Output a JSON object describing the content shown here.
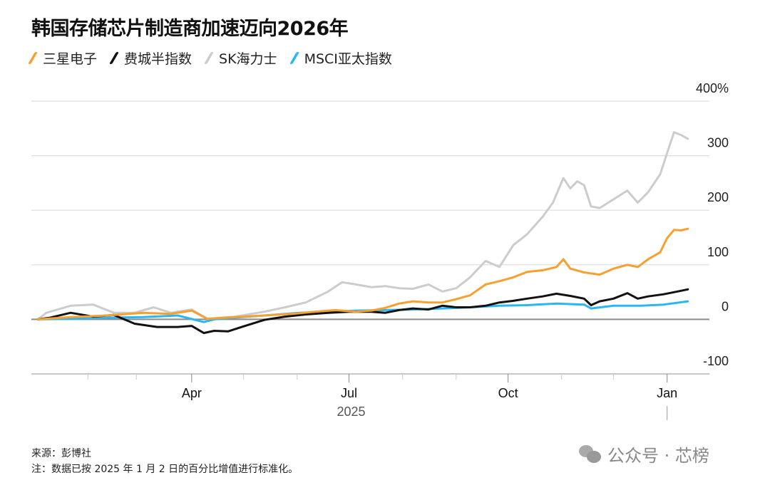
{
  "chart_data": {
    "type": "line",
    "title": "韩国存储芯片制造商加速迈向2026年",
    "xlabel": "2025",
    "ylabel": "",
    "x_units": "days since 2025-01-02",
    "xlim": [
      -2,
      382
    ],
    "ylim": [
      -100,
      400
    ],
    "yticks": [
      {
        "value": 400,
        "label": "400%"
      },
      {
        "value": 300,
        "label": "300"
      },
      {
        "value": 200,
        "label": "200"
      },
      {
        "value": 100,
        "label": "100"
      },
      {
        "value": 0,
        "label": "0"
      },
      {
        "value": -100,
        "label": "-100"
      }
    ],
    "xticks_minor": [
      29,
      57,
      119,
      150,
      211,
      242,
      303,
      333
    ],
    "xticks": [
      {
        "value": 89,
        "label": "Apr"
      },
      {
        "value": 180,
        "label": "Jul"
      },
      {
        "value": 272,
        "label": "Oct"
      },
      {
        "value": 364,
        "label": "Jan"
      }
    ],
    "year_label": "2025",
    "grid": true,
    "legend_position": "top-left",
    "series": [
      {
        "name": "SK海力士",
        "color": "#cccccc",
        "points": [
          [
            0,
            0
          ],
          [
            5,
            12
          ],
          [
            19,
            25
          ],
          [
            32,
            27
          ],
          [
            44,
            12
          ],
          [
            56,
            12
          ],
          [
            67,
            22
          ],
          [
            77,
            12
          ],
          [
            89,
            18
          ],
          [
            98,
            1
          ],
          [
            114,
            5
          ],
          [
            131,
            14
          ],
          [
            143,
            22
          ],
          [
            155,
            31
          ],
          [
            168,
            51
          ],
          [
            176,
            68
          ],
          [
            184,
            64
          ],
          [
            193,
            59
          ],
          [
            201,
            61
          ],
          [
            209,
            57
          ],
          [
            217,
            56
          ],
          [
            226,
            64
          ],
          [
            234,
            51
          ],
          [
            242,
            57
          ],
          [
            250,
            77
          ],
          [
            259,
            107
          ],
          [
            267,
            96
          ],
          [
            275,
            136
          ],
          [
            283,
            156
          ],
          [
            292,
            188
          ],
          [
            298,
            214
          ],
          [
            304,
            259
          ],
          [
            308,
            240
          ],
          [
            312,
            253
          ],
          [
            316,
            246
          ],
          [
            320,
            207
          ],
          [
            325,
            204
          ],
          [
            333,
            220
          ],
          [
            341,
            236
          ],
          [
            347,
            214
          ],
          [
            353,
            233
          ],
          [
            360,
            266
          ],
          [
            364,
            305
          ],
          [
            368,
            343
          ],
          [
            372,
            338
          ],
          [
            376,
            331
          ]
        ]
      },
      {
        "name": "MSCI亚太指数",
        "color": "#29b6f6",
        "points": [
          [
            0,
            0
          ],
          [
            19,
            1
          ],
          [
            40,
            3
          ],
          [
            61,
            4
          ],
          [
            81,
            7
          ],
          [
            96,
            -5
          ],
          [
            102,
            0
          ],
          [
            118,
            4
          ],
          [
            135,
            8
          ],
          [
            151,
            12
          ],
          [
            168,
            14
          ],
          [
            184,
            16
          ],
          [
            201,
            17
          ],
          [
            217,
            18
          ],
          [
            234,
            20
          ],
          [
            250,
            22
          ],
          [
            267,
            25
          ],
          [
            283,
            26
          ],
          [
            300,
            29
          ],
          [
            316,
            27
          ],
          [
            320,
            20
          ],
          [
            333,
            25
          ],
          [
            349,
            25
          ],
          [
            362,
            27
          ],
          [
            376,
            33
          ]
        ]
      },
      {
        "name": "费城半指数",
        "color": "#111111",
        "points": [
          [
            0,
            0
          ],
          [
            7,
            3
          ],
          [
            19,
            12
          ],
          [
            32,
            5
          ],
          [
            44,
            8
          ],
          [
            56,
            -8
          ],
          [
            69,
            -14
          ],
          [
            81,
            -14
          ],
          [
            89,
            -12
          ],
          [
            96,
            -25
          ],
          [
            102,
            -21
          ],
          [
            110,
            -22
          ],
          [
            118,
            -14
          ],
          [
            131,
            -1
          ],
          [
            143,
            5
          ],
          [
            155,
            9
          ],
          [
            168,
            12
          ],
          [
            180,
            14
          ],
          [
            193,
            14
          ],
          [
            201,
            12
          ],
          [
            209,
            17
          ],
          [
            217,
            20
          ],
          [
            226,
            18
          ],
          [
            234,
            25
          ],
          [
            242,
            22
          ],
          [
            250,
            22
          ],
          [
            259,
            25
          ],
          [
            267,
            31
          ],
          [
            275,
            34
          ],
          [
            283,
            38
          ],
          [
            292,
            42
          ],
          [
            300,
            47
          ],
          [
            308,
            43
          ],
          [
            316,
            38
          ],
          [
            320,
            26
          ],
          [
            325,
            33
          ],
          [
            333,
            38
          ],
          [
            341,
            48
          ],
          [
            347,
            38
          ],
          [
            353,
            42
          ],
          [
            362,
            46
          ],
          [
            370,
            51
          ],
          [
            376,
            55
          ]
        ]
      },
      {
        "name": "三星电子",
        "color": "#f7a030",
        "points": [
          [
            0,
            0
          ],
          [
            19,
            4
          ],
          [
            40,
            7
          ],
          [
            61,
            12
          ],
          [
            77,
            10
          ],
          [
            89,
            16
          ],
          [
            98,
            1
          ],
          [
            114,
            4
          ],
          [
            131,
            7
          ],
          [
            147,
            10
          ],
          [
            160,
            14
          ],
          [
            172,
            17
          ],
          [
            184,
            14
          ],
          [
            193,
            16
          ],
          [
            201,
            21
          ],
          [
            209,
            29
          ],
          [
            217,
            33
          ],
          [
            226,
            31
          ],
          [
            234,
            31
          ],
          [
            242,
            37
          ],
          [
            250,
            44
          ],
          [
            259,
            64
          ],
          [
            267,
            70
          ],
          [
            275,
            77
          ],
          [
            283,
            87
          ],
          [
            292,
            90
          ],
          [
            300,
            96
          ],
          [
            304,
            110
          ],
          [
            308,
            93
          ],
          [
            316,
            86
          ],
          [
            325,
            82
          ],
          [
            333,
            93
          ],
          [
            341,
            100
          ],
          [
            347,
            96
          ],
          [
            353,
            110
          ],
          [
            360,
            123
          ],
          [
            364,
            149
          ],
          [
            368,
            164
          ],
          [
            372,
            163
          ],
          [
            376,
            166
          ]
        ]
      }
    ]
  },
  "legend": [
    {
      "label": "三星电子",
      "color": "#f7a030"
    },
    {
      "label": "费城半指数",
      "color": "#111111"
    },
    {
      "label": "SK海力士",
      "color": "#cccccc"
    },
    {
      "label": "MSCI亚太指数",
      "color": "#29b6f6"
    }
  ],
  "footer": {
    "source": "来源：彭博社",
    "note": "注：数据已按 2025 年 1 月 2 日的百分比增值进行标准化。"
  },
  "watermark": "公众号 · 芯榜"
}
